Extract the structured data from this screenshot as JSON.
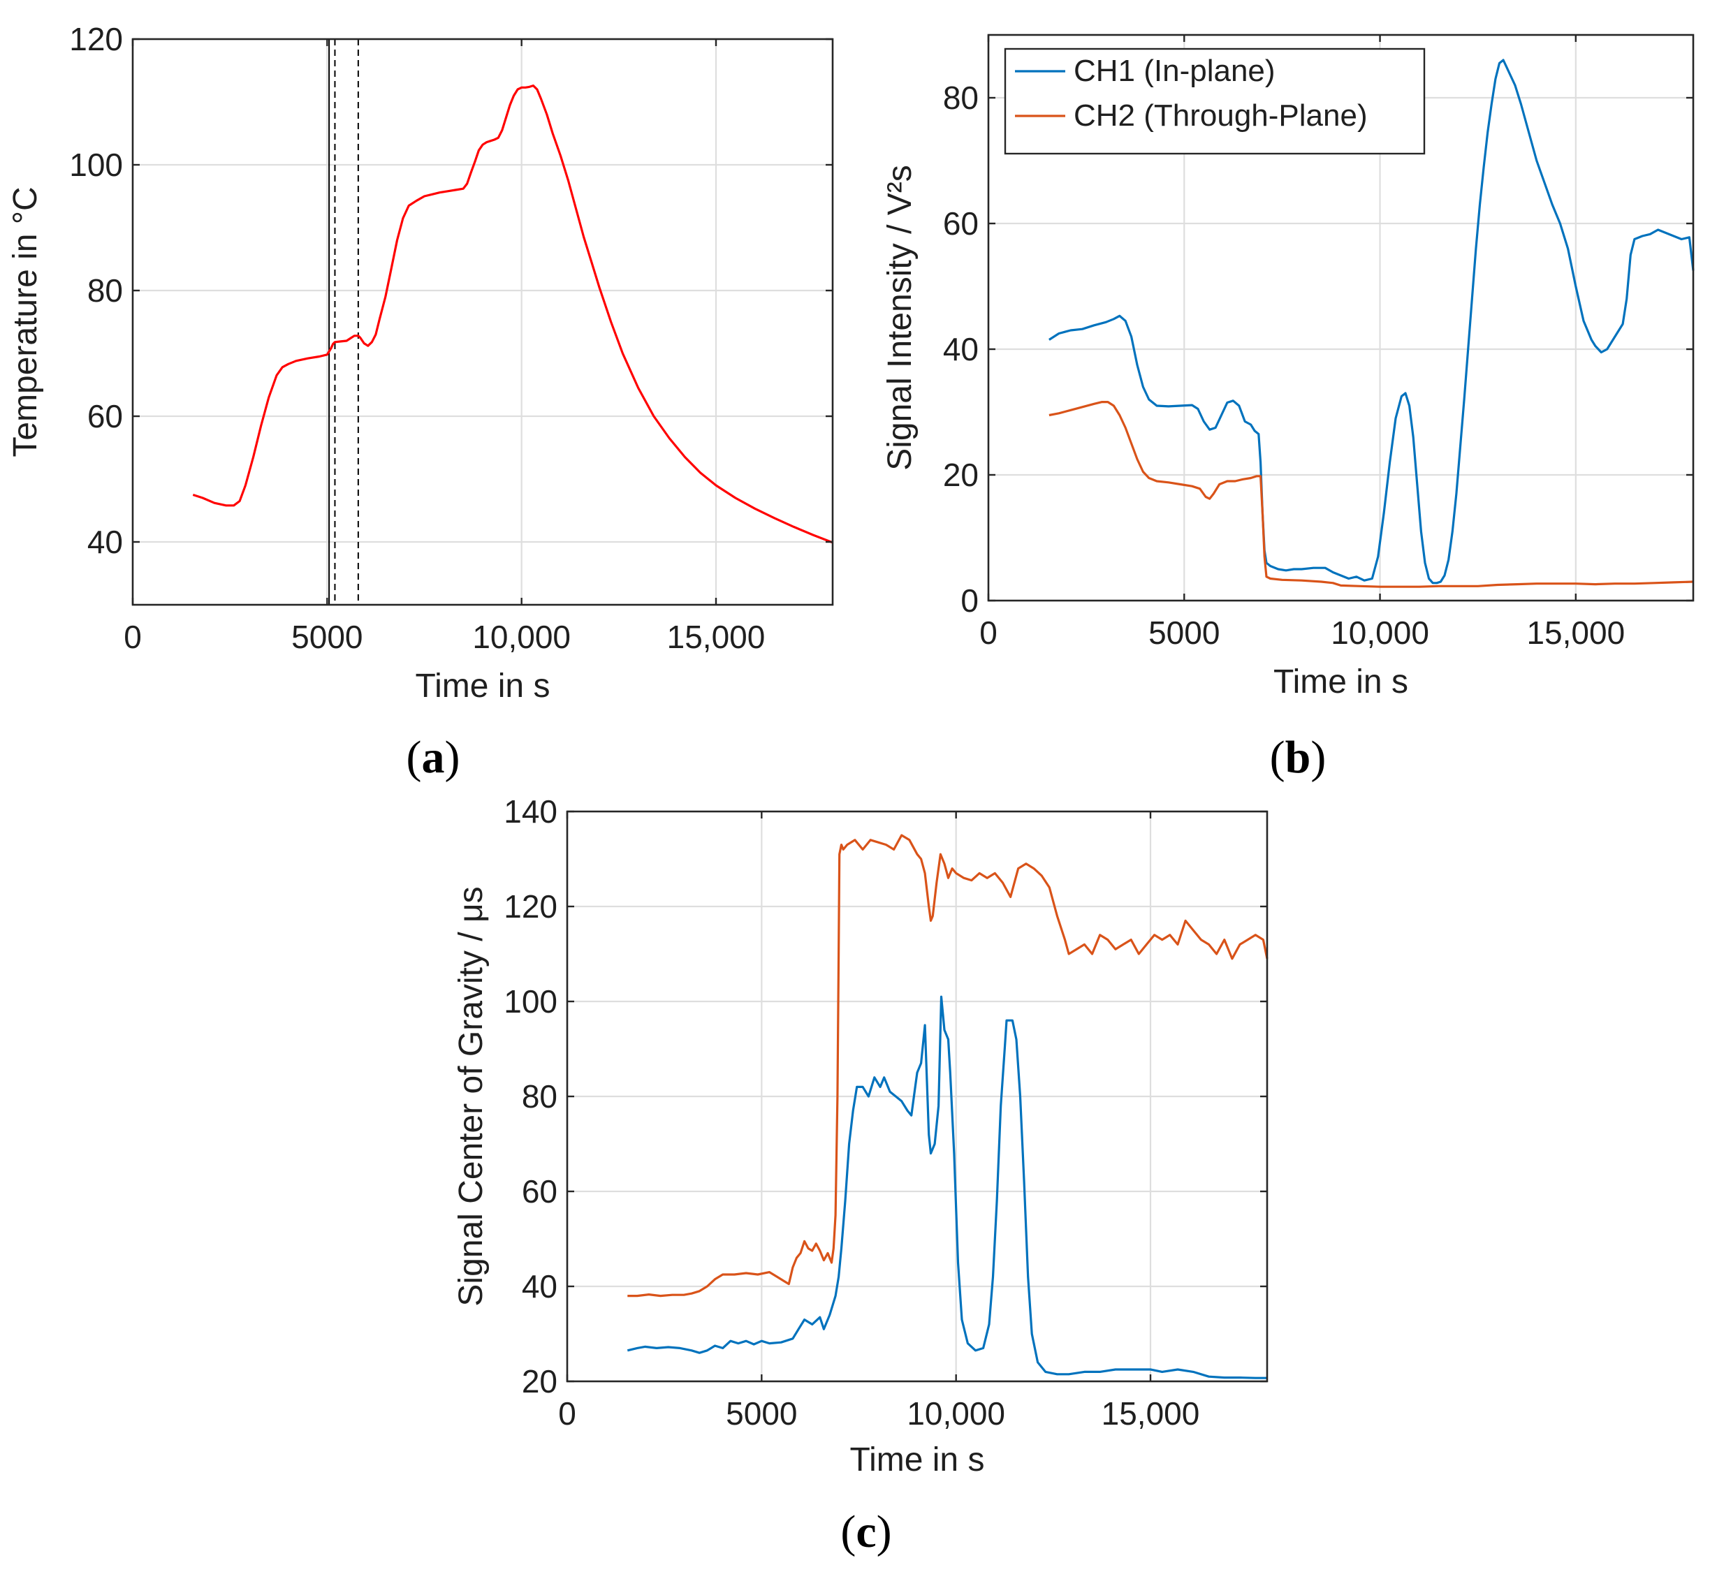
{
  "chart_data": [
    {
      "id": "a",
      "type": "line",
      "panel_label": "a",
      "xlabel": "Time in s",
      "ylabel": "Temperature in °C",
      "xlim": [
        0,
        18000
      ],
      "ylim": [
        30,
        120
      ],
      "xticks": [
        0,
        5000,
        10000,
        15000
      ],
      "xtick_labels": [
        "0",
        "5000",
        "10,000",
        "15,000"
      ],
      "yticks": [
        40,
        60,
        80,
        100,
        120
      ],
      "ytick_labels": [
        "40",
        "60",
        "80",
        "100",
        "120"
      ],
      "grid": true,
      "vlines": [
        {
          "x": 5050,
          "style": "solid"
        },
        {
          "x": 5200,
          "style": "dashed"
        },
        {
          "x": 5800,
          "style": "dashed"
        }
      ],
      "series": [
        {
          "name": "Temperature",
          "color": "#ff0000",
          "x": [
            1550,
            1800,
            2100,
            2400,
            2600,
            2750,
            2900,
            3100,
            3300,
            3500,
            3700,
            3850,
            4000,
            4200,
            4500,
            4800,
            5000,
            5100,
            5150,
            5200,
            5350,
            5500,
            5600,
            5700,
            5800,
            5850,
            5950,
            6050,
            6150,
            6250,
            6350,
            6500,
            6650,
            6800,
            6950,
            7100,
            7300,
            7500,
            7700,
            7900,
            8100,
            8300,
            8500,
            8600,
            8700,
            8800,
            8900,
            9000,
            9100,
            9200,
            9300,
            9400,
            9500,
            9600,
            9700,
            9800,
            9900,
            10000,
            10100,
            10200,
            10300,
            10400,
            10500,
            10650,
            10800,
            11000,
            11200,
            11400,
            11600,
            11800,
            12000,
            12300,
            12600,
            13000,
            13400,
            13800,
            14200,
            14600,
            15000,
            15500,
            16000,
            16500,
            17000,
            17500,
            18000
          ],
          "y": [
            47.5,
            47.0,
            46.2,
            45.8,
            45.8,
            46.5,
            49.0,
            53.5,
            58.5,
            63.0,
            66.5,
            67.8,
            68.3,
            68.8,
            69.2,
            69.5,
            69.8,
            70.8,
            71.5,
            71.8,
            71.9,
            72.0,
            72.4,
            72.8,
            72.8,
            72.5,
            71.6,
            71.2,
            71.8,
            73.0,
            75.5,
            79.0,
            83.5,
            88.0,
            91.5,
            93.5,
            94.3,
            95.0,
            95.3,
            95.6,
            95.8,
            96.0,
            96.2,
            97.0,
            98.8,
            100.5,
            102.3,
            103.2,
            103.6,
            103.8,
            104.0,
            104.3,
            105.5,
            107.5,
            109.5,
            111.0,
            112.0,
            112.3,
            112.3,
            112.4,
            112.6,
            112.0,
            110.5,
            108.0,
            105.0,
            101.5,
            97.5,
            93.0,
            88.5,
            84.5,
            80.5,
            75.0,
            70.0,
            64.5,
            60.0,
            56.5,
            53.5,
            51.0,
            49.0,
            47.0,
            45.3,
            43.8,
            42.4,
            41.1,
            39.9
          ]
        }
      ]
    },
    {
      "id": "b",
      "type": "line",
      "panel_label": "b",
      "xlabel": "Time in s",
      "ylabel": "Signal Intensity / V²s",
      "xlim": [
        0,
        18000
      ],
      "ylim": [
        0,
        90
      ],
      "xticks": [
        0,
        5000,
        10000,
        15000
      ],
      "xtick_labels": [
        "0",
        "5000",
        "10,000",
        "15,000"
      ],
      "yticks": [
        0,
        20,
        40,
        60,
        80
      ],
      "ytick_labels": [
        "0",
        "20",
        "40",
        "60",
        "80"
      ],
      "grid": true,
      "legend_position": "top-left",
      "series": [
        {
          "name": "CH1 (In-plane)",
          "color": "#0072bd",
          "x": [
            1550,
            1800,
            2100,
            2400,
            2700,
            3000,
            3200,
            3350,
            3500,
            3650,
            3800,
            3950,
            4100,
            4300,
            4600,
            4900,
            5200,
            5350,
            5500,
            5650,
            5800,
            5950,
            6100,
            6250,
            6400,
            6550,
            6700,
            6800,
            6900,
            6950,
            7000,
            7050,
            7100,
            7200,
            7400,
            7600,
            7800,
            8000,
            8300,
            8600,
            8800,
            9000,
            9200,
            9400,
            9600,
            9800,
            9950,
            10100,
            10250,
            10400,
            10550,
            10650,
            10750,
            10850,
            10950,
            11050,
            11150,
            11250,
            11350,
            11450,
            11550,
            11650,
            11750,
            11850,
            11950,
            12050,
            12150,
            12250,
            12350,
            12450,
            12550,
            12650,
            12750,
            12850,
            12950,
            13050,
            13150,
            13300,
            13450,
            13600,
            13800,
            14000,
            14200,
            14400,
            14600,
            14800,
            15000,
            15200,
            15400,
            15500,
            15650,
            15800,
            15950,
            16100,
            16200,
            16300,
            16400,
            16500,
            16700,
            16900,
            17100,
            17300,
            17500,
            17700,
            17900,
            18000
          ],
          "y": [
            41.5,
            42.5,
            43.0,
            43.2,
            43.8,
            44.3,
            44.8,
            45.3,
            44.5,
            42.0,
            37.5,
            34.0,
            32.0,
            31.0,
            30.9,
            31.0,
            31.1,
            30.5,
            28.5,
            27.2,
            27.5,
            29.5,
            31.5,
            31.8,
            31.0,
            28.5,
            28.0,
            27.0,
            26.5,
            22.0,
            14.0,
            8.0,
            6.0,
            5.5,
            5.0,
            4.8,
            5.0,
            5.0,
            5.2,
            5.2,
            4.5,
            4.0,
            3.5,
            3.8,
            3.2,
            3.5,
            7.0,
            14.0,
            22.0,
            29.0,
            32.5,
            33.0,
            31.0,
            26.0,
            18.5,
            11.0,
            6.0,
            3.5,
            2.8,
            2.8,
            3.0,
            4.0,
            6.5,
            11.0,
            17.0,
            24.5,
            32.0,
            40.0,
            48.0,
            56.0,
            63.0,
            69.0,
            74.5,
            79.0,
            83.0,
            85.5,
            86.0,
            84.0,
            82.0,
            79.0,
            74.5,
            70.0,
            66.5,
            63.0,
            60.0,
            56.0,
            50.0,
            44.5,
            41.5,
            40.5,
            39.5,
            40.0,
            41.5,
            43.0,
            44.0,
            48.0,
            55.0,
            57.5,
            58.0,
            58.3,
            59.0,
            58.5,
            58.0,
            57.5,
            57.8,
            52.5
          ]
        },
        {
          "name": "CH2 (Through-Plane)",
          "color": "#d95319",
          "x": [
            1550,
            1800,
            2100,
            2400,
            2700,
            2900,
            3050,
            3200,
            3350,
            3500,
            3650,
            3800,
            3950,
            4100,
            4300,
            4600,
            4900,
            5200,
            5400,
            5550,
            5650,
            5750,
            5900,
            6100,
            6300,
            6500,
            6700,
            6850,
            6950,
            7000,
            7050,
            7100,
            7200,
            7500,
            8000,
            8500,
            8800,
            9000,
            9500,
            10000,
            10500,
            11000,
            11500,
            12000,
            12500,
            13000,
            13500,
            14000,
            14500,
            15000,
            15500,
            16000,
            16500,
            17000,
            17500,
            18000
          ],
          "y": [
            29.5,
            29.8,
            30.3,
            30.8,
            31.3,
            31.6,
            31.6,
            31.0,
            29.5,
            27.5,
            25.0,
            22.5,
            20.5,
            19.5,
            19.0,
            18.8,
            18.5,
            18.2,
            17.8,
            16.5,
            16.2,
            17.0,
            18.5,
            19.0,
            19.0,
            19.3,
            19.5,
            19.8,
            19.8,
            14.0,
            7.0,
            3.8,
            3.5,
            3.3,
            3.2,
            3.0,
            2.8,
            2.4,
            2.3,
            2.2,
            2.2,
            2.2,
            2.3,
            2.3,
            2.3,
            2.5,
            2.6,
            2.7,
            2.7,
            2.7,
            2.6,
            2.7,
            2.7,
            2.8,
            2.9,
            3.0
          ]
        }
      ]
    },
    {
      "id": "c",
      "type": "line",
      "panel_label": "c",
      "xlabel": "Time in s",
      "ylabel": "Signal Center of Gravity / μs",
      "xlim": [
        0,
        18000
      ],
      "ylim": [
        20,
        140
      ],
      "xticks": [
        0,
        5000,
        10000,
        15000
      ],
      "xtick_labels": [
        "0",
        "5000",
        "10,000",
        "15,000"
      ],
      "yticks": [
        20,
        40,
        60,
        80,
        100,
        120,
        140
      ],
      "ytick_labels": [
        "20",
        "40",
        "60",
        "80",
        "100",
        "120",
        "140"
      ],
      "grid": true,
      "series": [
        {
          "name": "CH1",
          "color": "#0072bd",
          "x": [
            1550,
            1800,
            2000,
            2300,
            2600,
            2900,
            3200,
            3400,
            3600,
            3800,
            4000,
            4200,
            4400,
            4600,
            4800,
            5000,
            5200,
            5500,
            5800,
            5950,
            6100,
            6300,
            6500,
            6600,
            6750,
            6900,
            6980,
            7050,
            7150,
            7250,
            7350,
            7450,
            7600,
            7750,
            7900,
            8050,
            8150,
            8300,
            8450,
            8600,
            8750,
            8850,
            8950,
            9000,
            9050,
            9100,
            9200,
            9300,
            9350,
            9450,
            9550,
            9620,
            9700,
            9800,
            9850,
            9950,
            10050,
            10150,
            10300,
            10500,
            10700,
            10850,
            10950,
            11050,
            11150,
            11250,
            11300,
            11350,
            11450,
            11550,
            11650,
            11750,
            11850,
            11950,
            12100,
            12300,
            12600,
            12900,
            13300,
            13700,
            14100,
            14600,
            15000,
            15300,
            15700,
            16100,
            16500,
            16900,
            17300,
            17700,
            18000
          ],
          "y": [
            26.5,
            27.0,
            27.3,
            27.0,
            27.2,
            27.0,
            26.5,
            26.0,
            26.5,
            27.5,
            27.0,
            28.5,
            28.0,
            28.5,
            27.8,
            28.5,
            28.0,
            28.2,
            29.0,
            31.0,
            33.0,
            32.0,
            33.5,
            31.0,
            34.0,
            38.0,
            42.0,
            48.0,
            58.0,
            70.0,
            77.0,
            82.0,
            82.0,
            80.0,
            84.0,
            82.0,
            84.0,
            81.0,
            80.0,
            79.0,
            77.0,
            76.0,
            82.0,
            85.0,
            86.0,
            87.0,
            95.0,
            72.0,
            68.0,
            70.0,
            78.0,
            101.0,
            94.0,
            92.0,
            85.0,
            68.0,
            45.0,
            33.0,
            28.0,
            26.5,
            27.0,
            32.0,
            42.0,
            58.0,
            78.0,
            90.0,
            96.0,
            96.0,
            96.0,
            92.0,
            80.0,
            62.0,
            42.0,
            30.0,
            24.0,
            22.0,
            21.5,
            21.5,
            22.0,
            22.0,
            22.5,
            22.5,
            22.5,
            22.0,
            22.5,
            22.0,
            21.0,
            20.8,
            20.8,
            20.7,
            20.7
          ]
        },
        {
          "name": "CH2",
          "color": "#d95319",
          "x": [
            1550,
            1800,
            2100,
            2400,
            2700,
            3000,
            3200,
            3400,
            3600,
            3800,
            4000,
            4300,
            4600,
            4900,
            5200,
            5400,
            5600,
            5700,
            5800,
            5900,
            6000,
            6100,
            6200,
            6300,
            6400,
            6500,
            6600,
            6700,
            6800,
            6850,
            6900,
            6950,
            6980,
            7000,
            7050,
            7100,
            7200,
            7400,
            7600,
            7800,
            8000,
            8200,
            8400,
            8600,
            8800,
            9000,
            9100,
            9200,
            9300,
            9350,
            9400,
            9500,
            9600,
            9700,
            9800,
            9900,
            10000,
            10200,
            10400,
            10600,
            10800,
            11000,
            11200,
            11400,
            11600,
            11800,
            12000,
            12200,
            12400,
            12600,
            12800,
            12900,
            13100,
            13300,
            13500,
            13700,
            13900,
            14100,
            14300,
            14500,
            14700,
            14900,
            15100,
            15300,
            15500,
            15700,
            15900,
            16100,
            16300,
            16500,
            16700,
            16900,
            17100,
            17300,
            17500,
            17700,
            17900,
            18000
          ],
          "y": [
            38.0,
            38.0,
            38.3,
            38.0,
            38.2,
            38.2,
            38.5,
            39.0,
            40.0,
            41.5,
            42.5,
            42.5,
            42.8,
            42.5,
            43.0,
            42.0,
            41.0,
            40.5,
            44.0,
            46.0,
            47.0,
            49.5,
            48.0,
            47.5,
            49.0,
            47.5,
            45.5,
            47.0,
            45.0,
            48.0,
            55.0,
            80.0,
            110.0,
            131.0,
            133.0,
            132.0,
            133.0,
            134.0,
            132.0,
            134.0,
            133.5,
            133.0,
            132.0,
            135.0,
            134.0,
            131.0,
            130.0,
            127.0,
            120.0,
            117.0,
            118.0,
            125.0,
            131.0,
            129.0,
            126.0,
            128.0,
            127.0,
            126.0,
            125.5,
            127.0,
            126.0,
            127.0,
            125.0,
            122.0,
            128.0,
            129.0,
            128.0,
            126.5,
            124.0,
            118.0,
            113.0,
            110.0,
            111.0,
            112.0,
            110.0,
            114.0,
            113.0,
            111.0,
            112.0,
            113.0,
            110.0,
            112.0,
            114.0,
            113.0,
            114.0,
            112.0,
            117.0,
            115.0,
            113.0,
            112.0,
            110.0,
            113.0,
            109.0,
            112.0,
            113.0,
            114.0,
            113.0,
            109.0
          ]
        }
      ]
    }
  ]
}
